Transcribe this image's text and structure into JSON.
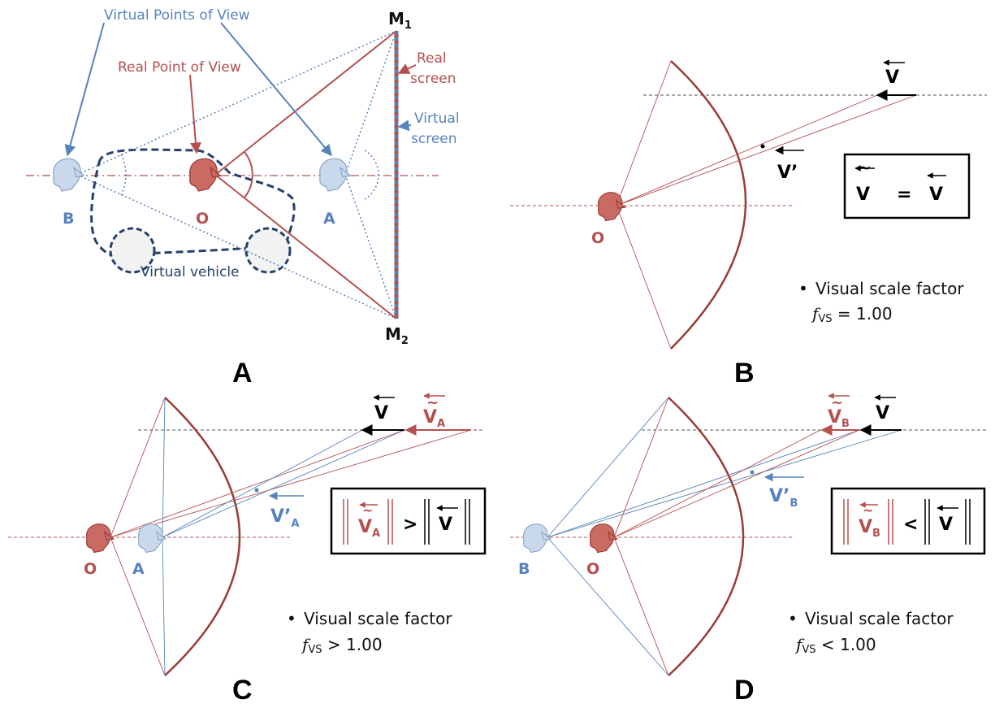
{
  "colors": {
    "red": "#b5504f",
    "blue": "#5683bd",
    "dark_red": "#9b3a33",
    "navy": "#25406b",
    "gray": "#555555",
    "black": "#000000"
  },
  "panel_a": {
    "panel_label": "A",
    "virtual_points_label": "Virtual Points of View",
    "real_point_label": "Real Point of View",
    "real_screen_label_1": "Real",
    "real_screen_label_2": "screen",
    "virtual_screen_label_1": "Virtual",
    "virtual_screen_label_2": "screen",
    "vehicle_label": "Virtual vehicle",
    "viewer_b": "B",
    "viewer_o": "O",
    "viewer_a": "A",
    "m1": "M",
    "m1_sub": "1",
    "m2": "M",
    "m2_sub": "2"
  },
  "panel_b": {
    "panel_label": "B",
    "v_label": "V",
    "v_prime_label": "V’",
    "viewer_o": "O",
    "eq_left": "V",
    "eq_op": "=",
    "eq_right": "V",
    "tilde": "~",
    "bullet": "•",
    "scale_label": "Visual scale factor",
    "fvs_f": "f",
    "fvs_sub": "VS",
    "fvs_value": " = 1.00"
  },
  "panel_c": {
    "panel_label": "C",
    "v_label": "V",
    "va_label": "V",
    "va_sub": "A",
    "tilde": "~",
    "v_prime_label": "V’",
    "v_prime_sub": "A",
    "viewer_o": "O",
    "viewer_a": "A",
    "box_op": ">",
    "box_left": "V",
    "box_left_sub": "A",
    "box_right": "V",
    "bullet": "•",
    "scale_label": "Visual scale factor",
    "fvs_f": "f",
    "fvs_sub": "VS",
    "fvs_value": " > 1.00"
  },
  "panel_d": {
    "panel_label": "D",
    "v_label": "V",
    "vb_label": "V",
    "vb_sub": "B",
    "tilde": "~",
    "v_prime_label": "V’",
    "v_prime_sub": "B",
    "viewer_b": "B",
    "viewer_o": "O",
    "box_op": "<",
    "box_left": "V",
    "box_left_sub": "B",
    "box_right": "V",
    "bullet": "•",
    "scale_label": "Visual scale factor",
    "fvs_f": "f",
    "fvs_sub": "VS",
    "fvs_value": " < 1.00"
  }
}
